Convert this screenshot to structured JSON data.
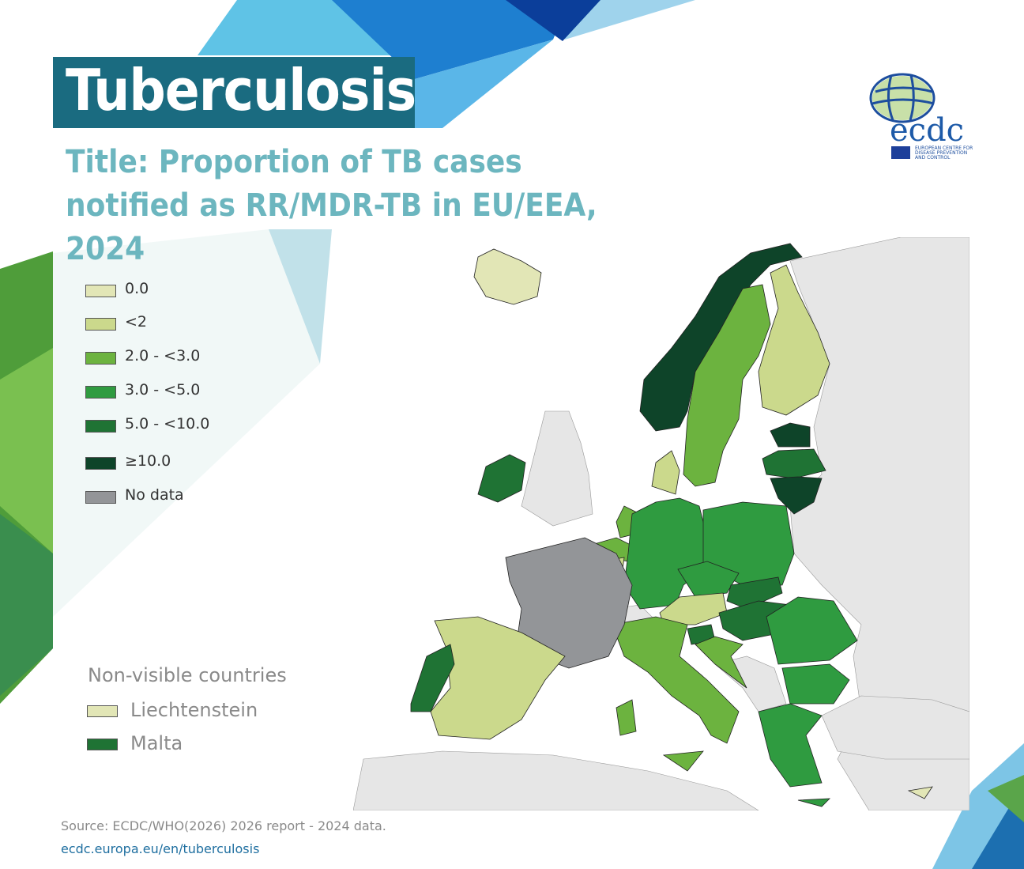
{
  "header": {
    "title": "Tuberculosis",
    "subtitle": "Title: Proportion of TB cases notified as RR/MDR-TB in EU/EEA, 2024"
  },
  "logo": {
    "name": "ecdc",
    "tagline": "EUROPEAN CENTRE FOR DISEASE PREVENTION AND CONTROL"
  },
  "legend": {
    "items": [
      {
        "key": "c0",
        "label": "0.0",
        "color": "#e2e6b6"
      },
      {
        "key": "c1",
        "label": "<2",
        "color": "#cbd98c"
      },
      {
        "key": "c2",
        "label": "2.0 - <3.0",
        "color": "#6cb33f"
      },
      {
        "key": "c3",
        "label": "3.0 - <5.0",
        "color": "#2f9b40"
      },
      {
        "key": "c4",
        "label": "5.0 - <10.0",
        "color": "#1f7334"
      },
      {
        "key": "c5",
        "label": "≥10.0",
        "color": "#0e4429"
      },
      {
        "key": "nd",
        "label": "No data",
        "color": "#939598"
      }
    ]
  },
  "non_visible": {
    "title": "Non-visible countries",
    "items": [
      {
        "label": "Liechtenstein",
        "category": "c0"
      },
      {
        "label": "Malta",
        "category": "c4"
      }
    ]
  },
  "map": {
    "non_eu_color": "#e6e6e6",
    "countries": {
      "Iceland": "c0",
      "Norway": "c5",
      "Sweden": "c2",
      "Finland": "c1",
      "Estonia": "c5",
      "Latvia": "c4",
      "Lithuania": "c5",
      "Denmark": "c1",
      "Ireland": "c4",
      "Netherlands": "c2",
      "Belgium": "c2",
      "Luxembourg": "c1",
      "Germany": "c3",
      "Poland": "c3",
      "Czechia": "c3",
      "Slovakia": "c4",
      "Austria": "c1",
      "Hungary": "c4",
      "Slovenia": "c4",
      "Croatia": "c2",
      "Italy": "c2",
      "France": "nd",
      "Spain": "c1",
      "Portugal": "c4",
      "Romania": "c3",
      "Bulgaria": "c3",
      "Greece": "c3",
      "Cyprus": "c0"
    }
  },
  "footer": {
    "source": "Source: ECDC/WHO(2026) 2026 report - 2024 data.",
    "link": "ecdc.europa.eu/en/tuberculosis"
  }
}
